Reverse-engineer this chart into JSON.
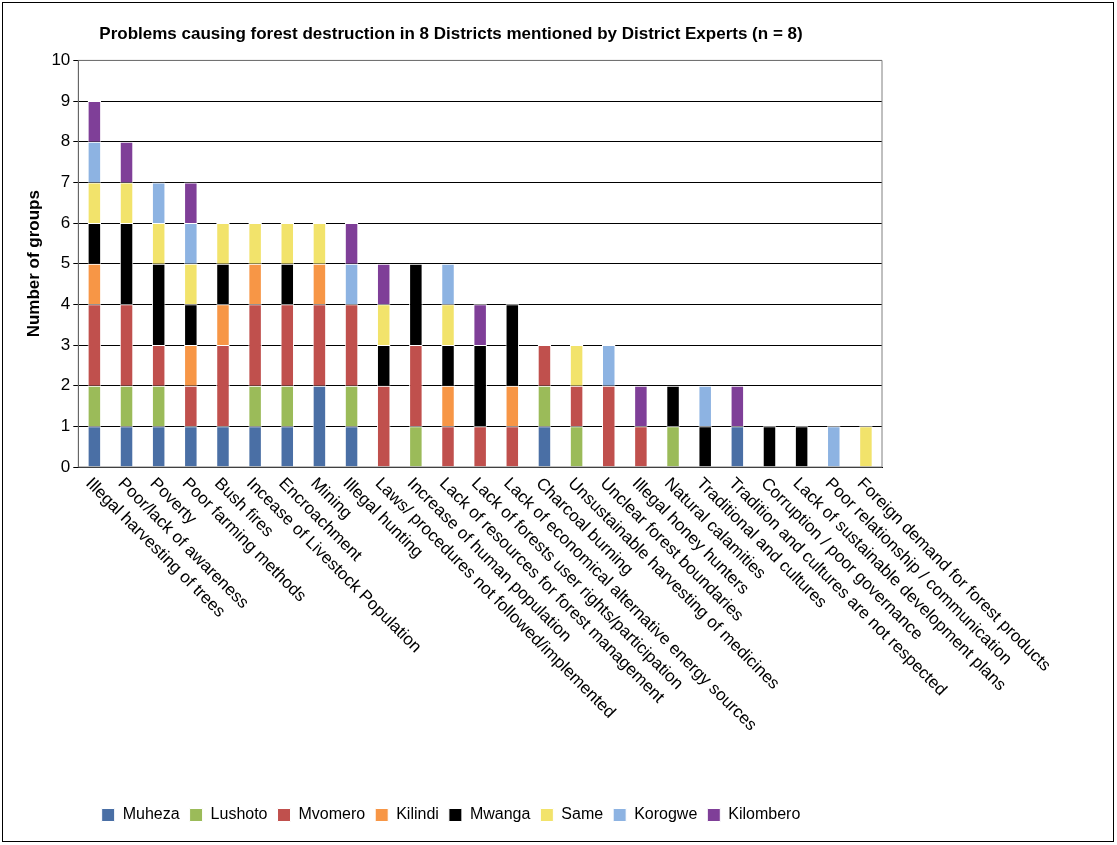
{
  "chart_data": {
    "type": "bar",
    "stacked": true,
    "title": "Problems causing forest destruction in 8 Districts mentioned by District Experts (n = 8)",
    "ylabel": "Number of groups",
    "categories": [
      "Illegal harvesting of trees",
      "Poor/lack of awareness",
      "Poverty",
      "Poor farming methods",
      "Bush fires",
      "Inceasе of Livestock Population",
      "Encroachment",
      "Mining",
      "Illegal hunting",
      "Laws/ procedures not followed/implemented",
      "Increase of human population",
      "Lack of resources for forest management",
      "Lack of forests user rights/participation",
      "Lack of economical alternative energy sources",
      "Charcoal burning",
      "Unsustainable harvesting of medicines",
      "Unclear forest boundaries",
      "Illegal honey hunters",
      "Natural calamities",
      "Traditional and cultures",
      "Tradition and cultures are not respected",
      "Corruption / poor governance",
      "Lack of sustainable development plans",
      "Poor relationship / communication",
      "Foreign demand for forest products"
    ],
    "series": [
      {
        "name": "Muheza",
        "color": "#4a6fa5",
        "values": [
          1,
          1,
          1,
          1,
          1,
          1,
          1,
          2,
          1,
          0,
          0,
          0,
          0,
          0,
          1,
          0,
          0,
          0,
          0,
          0,
          1,
          0,
          0,
          0,
          0
        ]
      },
      {
        "name": "Lushoto",
        "color": "#9bbb59",
        "values": [
          1,
          1,
          1,
          0,
          0,
          1,
          1,
          0,
          1,
          0,
          1,
          0,
          0,
          0,
          1,
          1,
          0,
          0,
          1,
          0,
          0,
          0,
          0,
          0,
          0
        ]
      },
      {
        "name": "Mvomero",
        "color": "#c0504d",
        "values": [
          2,
          2,
          1,
          1,
          2,
          2,
          2,
          2,
          2,
          2,
          2,
          1,
          1,
          1,
          1,
          1,
          2,
          1,
          0,
          0,
          0,
          0,
          0,
          0,
          0
        ]
      },
      {
        "name": "Kilindi",
        "color": "#f79646",
        "values": [
          1,
          0,
          0,
          1,
          1,
          1,
          0,
          1,
          0,
          0,
          0,
          1,
          0,
          1,
          0,
          0,
          0,
          0,
          0,
          0,
          0,
          0,
          0,
          0,
          0
        ]
      },
      {
        "name": "Mwanga",
        "color": "#000000",
        "values": [
          1,
          2,
          2,
          1,
          1,
          0,
          1,
          0,
          0,
          1,
          2,
          1,
          2,
          2,
          0,
          0,
          0,
          0,
          1,
          1,
          0,
          1,
          1,
          0,
          0
        ]
      },
      {
        "name": "Same",
        "color": "#f2e36b",
        "values": [
          1,
          1,
          1,
          1,
          1,
          1,
          1,
          1,
          0,
          1,
          0,
          1,
          0,
          0,
          0,
          1,
          0,
          0,
          0,
          0,
          0,
          0,
          0,
          0,
          1
        ]
      },
      {
        "name": "Korogwe",
        "color": "#8db3e2",
        "values": [
          1,
          0,
          1,
          1,
          0,
          0,
          0,
          0,
          1,
          0,
          0,
          1,
          0,
          0,
          0,
          0,
          1,
          0,
          0,
          1,
          0,
          0,
          0,
          1,
          0
        ]
      },
      {
        "name": "Kilombero",
        "color": "#7f3f98",
        "values": [
          1,
          1,
          0,
          1,
          0,
          0,
          0,
          0,
          1,
          1,
          0,
          0,
          1,
          0,
          0,
          0,
          0,
          1,
          0,
          0,
          1,
          0,
          0,
          0,
          0
        ]
      }
    ],
    "ylim": [
      0,
      10
    ],
    "yticks": [
      0,
      1,
      2,
      3,
      4,
      5,
      6,
      7,
      8,
      9,
      10
    ],
    "grid": "y",
    "legend": "bottom"
  }
}
